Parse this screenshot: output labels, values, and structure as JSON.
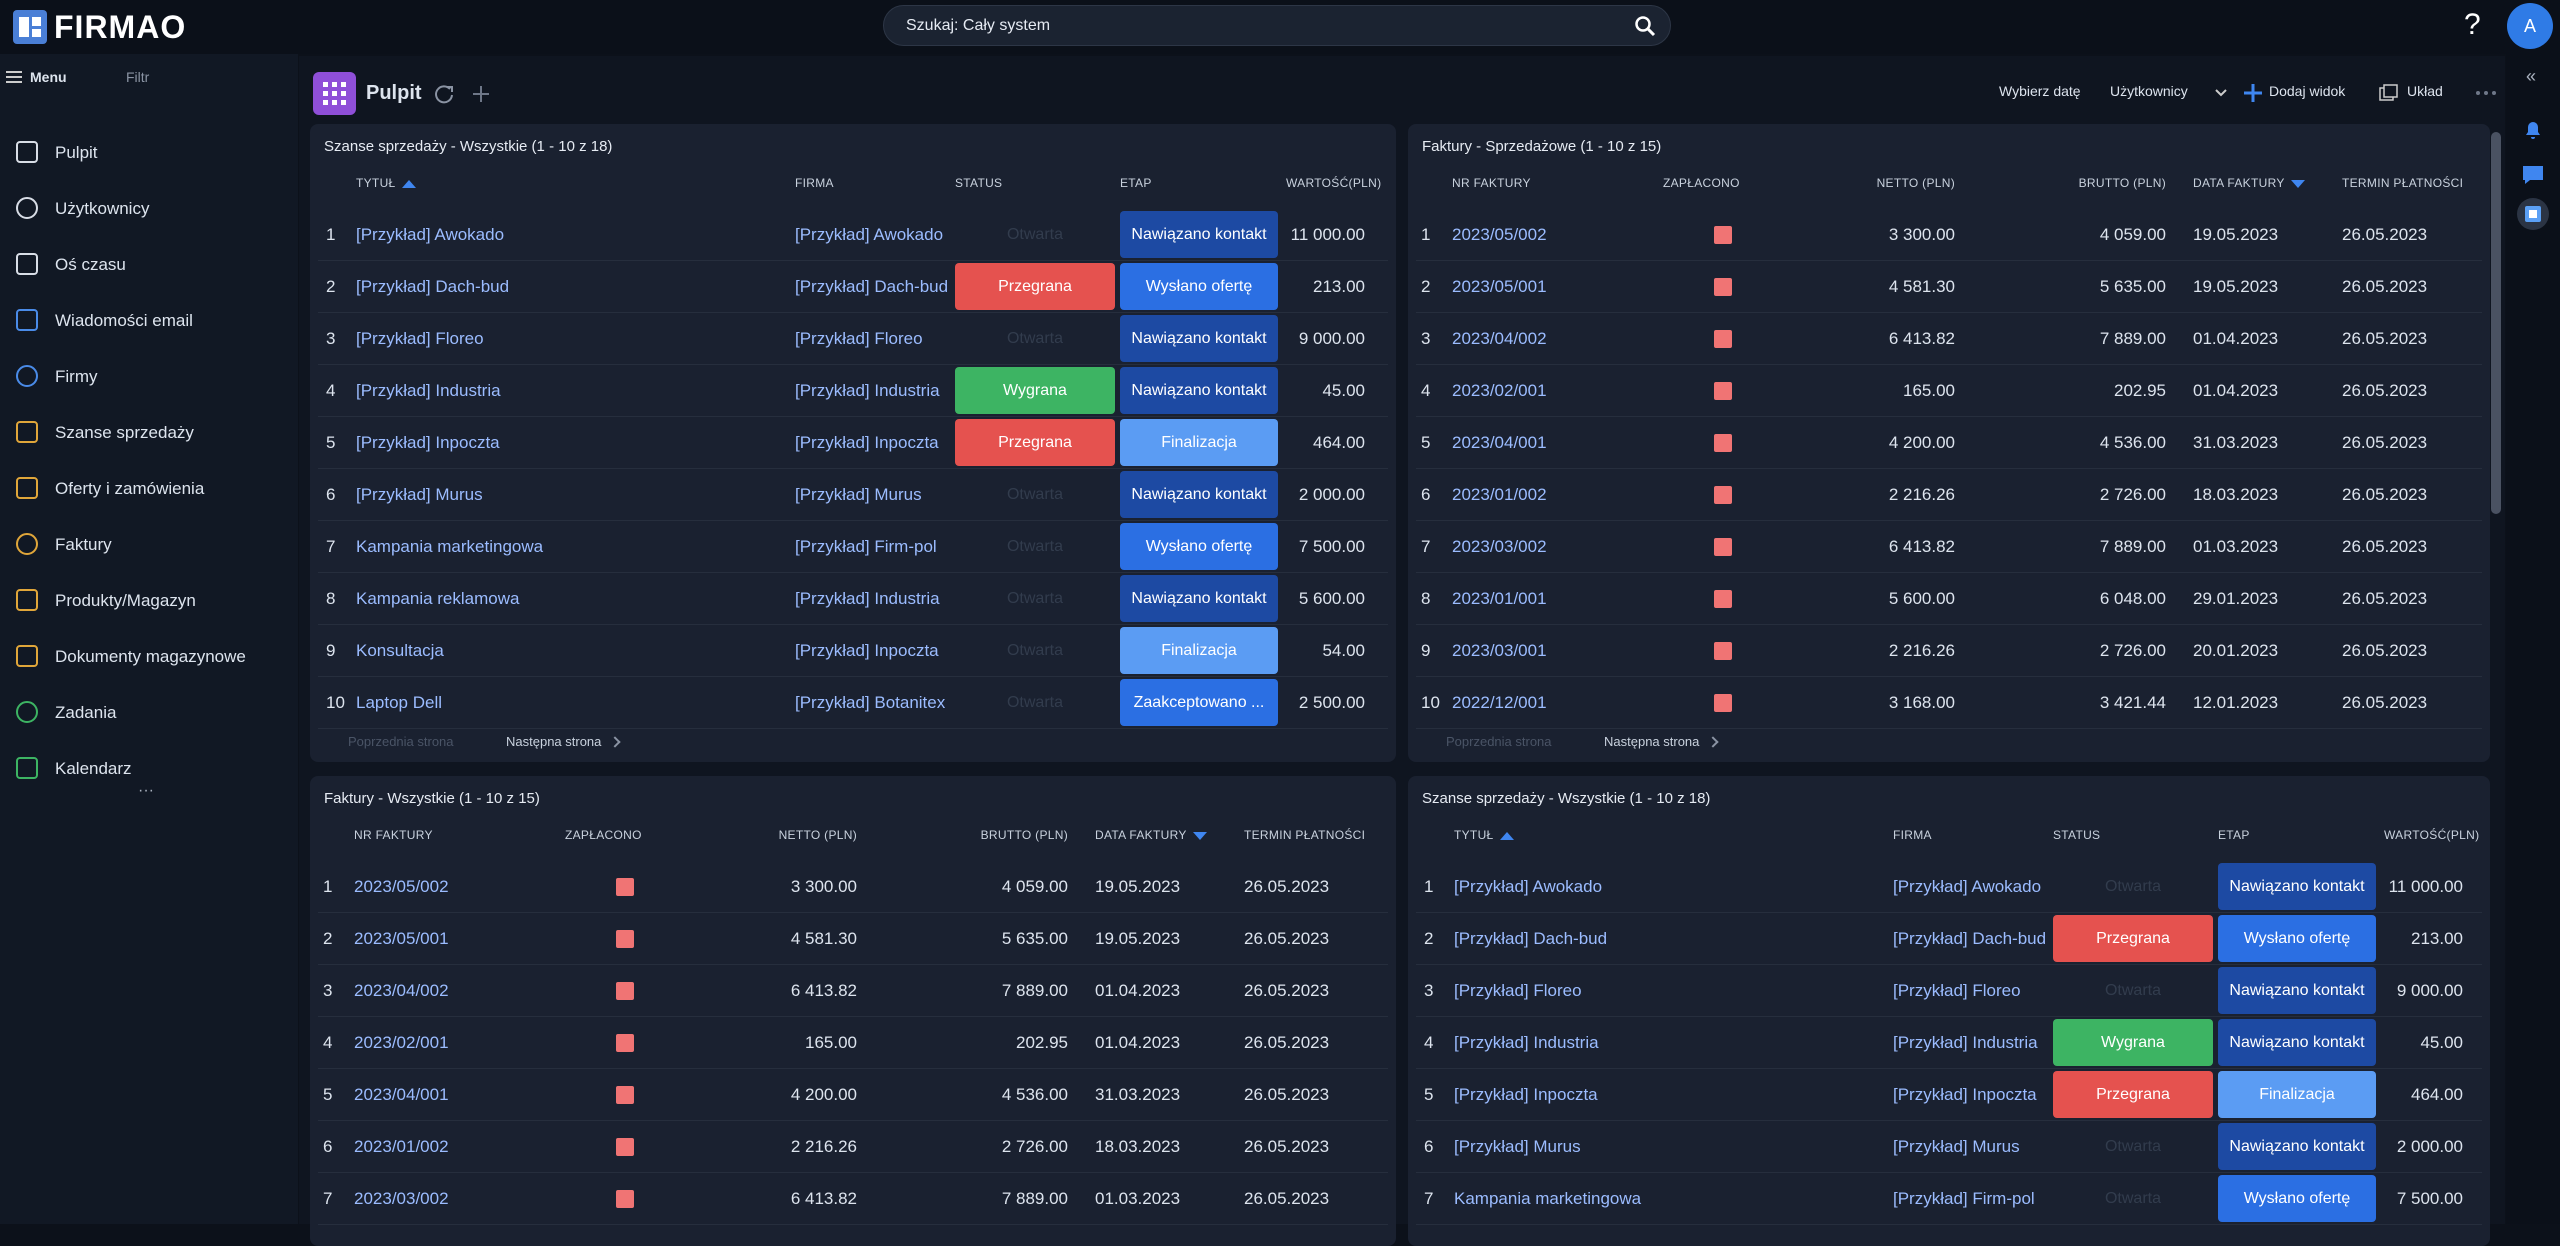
{
  "header": {
    "logo": "FIRMAO",
    "search": "Szukaj: Cały system",
    "help": "?",
    "avatar": "A"
  },
  "nav": {
    "menu": "Menu",
    "filter": "Filtr",
    "more": "···",
    "items": [
      "Pulpit",
      "Użytkownicy",
      "Oś czasu",
      "Wiadomości email",
      "Firmy",
      "Szanse sprzedaży",
      "Oferty i zamówienia",
      "Faktury",
      "Produkty/Magazyn",
      "Dokumenty magazynowe",
      "Zadania",
      "Kalendarz"
    ]
  },
  "toolbar": {
    "title": "Pulpit",
    "date": "Wybierz datę",
    "users": "Użytkownicy",
    "add_view": "Dodaj widok",
    "layout": "Układ"
  },
  "rail": {
    "collapse": "«"
  },
  "panels": [
    {
      "type": "deals",
      "title": "Szanse sprzedaży - Wszystkie (1 - 10 z 18)",
      "columns": [
        "TYTUŁ",
        "FIRMA",
        "STATUS",
        "ETAP",
        "WARTOŚĆ(PLN)"
      ],
      "sort": {
        "column": 0,
        "direction": "asc"
      },
      "colors": {
        "Przegrana": "#e5524f",
        "Wygrana": "#3db463",
        "Nawiązano kontakt": "#1d4aa3",
        "Wysłano ofertę": "#2b6fe3",
        "Finalizacja": "#5b9cf3",
        "Zaakceptowano ...": "#2b6fe3"
      },
      "rows": [
        [
          "1",
          "[Przykład] Awokado",
          "[Przykład] Awokado",
          "Otwarta",
          "Nawiązano kontakt",
          "11 000.00"
        ],
        [
          "2",
          "[Przykład] Dach-bud",
          "[Przykład] Dach-bud",
          "Przegrana",
          "Wysłano ofertę",
          "213.00"
        ],
        [
          "3",
          "[Przykład] Floreo",
          "[Przykład] Floreo",
          "Otwarta",
          "Nawiązano kontakt",
          "9 000.00"
        ],
        [
          "4",
          "[Przykład] Industria",
          "[Przykład] Industria",
          "Wygrana",
          "Nawiązano kontakt",
          "45.00"
        ],
        [
          "5",
          "[Przykład] Inpoczta",
          "[Przykład] Inpoczta",
          "Przegrana",
          "Finalizacja",
          "464.00"
        ],
        [
          "6",
          "[Przykład] Murus",
          "[Przykład] Murus",
          "Otwarta",
          "Nawiązano kontakt",
          "2 000.00"
        ],
        [
          "7",
          "Kampania marketingowa",
          "[Przykład] Firm-pol",
          "Otwarta",
          "Wysłano ofertę",
          "7 500.00"
        ],
        [
          "8",
          "Kampania reklamowa",
          "[Przykład] Industria",
          "Otwarta",
          "Nawiązano kontakt",
          "5 600.00"
        ],
        [
          "9",
          "Konsultacja",
          "[Przykład] Inpoczta",
          "Otwarta",
          "Finalizacja",
          "54.00"
        ],
        [
          "10",
          "Laptop Dell",
          "[Przykład] Botanitex",
          "Otwarta",
          "Zaakceptowano ...",
          "2 500.00"
        ]
      ],
      "pager": {
        "prev": "Poprzednia strona",
        "next": "Następna strona"
      }
    },
    {
      "type": "invoices",
      "title": "Faktury - Sprzedażowe (1 - 10 z 15)",
      "columns": [
        "NR FAKTURY",
        "ZAPŁACONO",
        "NETTO (PLN)",
        "BRUTTO (PLN)",
        "DATA FAKTURY",
        "TERMIN PŁATNOŚCI"
      ],
      "sort": {
        "column": 4,
        "direction": "desc"
      },
      "rows": [
        [
          "1",
          "2023/05/002",
          false,
          "3 300.00",
          "4 059.00",
          "19.05.2023",
          "26.05.2023"
        ],
        [
          "2",
          "2023/05/001",
          false,
          "4 581.30",
          "5 635.00",
          "19.05.2023",
          "26.05.2023"
        ],
        [
          "3",
          "2023/04/002",
          false,
          "6 413.82",
          "7 889.00",
          "01.04.2023",
          "26.05.2023"
        ],
        [
          "4",
          "2023/02/001",
          false,
          "165.00",
          "202.95",
          "01.04.2023",
          "26.05.2023"
        ],
        [
          "5",
          "2023/04/001",
          false,
          "4 200.00",
          "4 536.00",
          "31.03.2023",
          "26.05.2023"
        ],
        [
          "6",
          "2023/01/002",
          false,
          "2 216.26",
          "2 726.00",
          "18.03.2023",
          "26.05.2023"
        ],
        [
          "7",
          "2023/03/002",
          false,
          "6 413.82",
          "7 889.00",
          "01.03.2023",
          "26.05.2023"
        ],
        [
          "8",
          "2023/01/001",
          false,
          "5 600.00",
          "6 048.00",
          "29.01.2023",
          "26.05.2023"
        ],
        [
          "9",
          "2023/03/001",
          false,
          "2 216.26",
          "2 726.00",
          "20.01.2023",
          "26.05.2023"
        ],
        [
          "10",
          "2022/12/001",
          false,
          "3 168.00",
          "3 421.44",
          "12.01.2023",
          "26.05.2023"
        ]
      ],
      "pager": {
        "prev": "Poprzednia strona",
        "next": "Następna strona"
      }
    },
    {
      "type": "invoices",
      "title": "Faktury - Wszystkie (1 - 10 z 15)",
      "columns": [
        "NR FAKTURY",
        "ZAPŁACONO",
        "NETTO (PLN)",
        "BRUTTO (PLN)",
        "DATA FAKTURY",
        "TERMIN PŁATNOŚCI"
      ],
      "sort": {
        "column": 4,
        "direction": "desc"
      },
      "rows": [
        [
          "1",
          "2023/05/002",
          false,
          "3 300.00",
          "4 059.00",
          "19.05.2023",
          "26.05.2023"
        ],
        [
          "2",
          "2023/05/001",
          false,
          "4 581.30",
          "5 635.00",
          "19.05.2023",
          "26.05.2023"
        ],
        [
          "3",
          "2023/04/002",
          false,
          "6 413.82",
          "7 889.00",
          "01.04.2023",
          "26.05.2023"
        ],
        [
          "4",
          "2023/02/001",
          false,
          "165.00",
          "202.95",
          "01.04.2023",
          "26.05.2023"
        ],
        [
          "5",
          "2023/04/001",
          false,
          "4 200.00",
          "4 536.00",
          "31.03.2023",
          "26.05.2023"
        ],
        [
          "6",
          "2023/01/002",
          false,
          "2 216.26",
          "2 726.00",
          "18.03.2023",
          "26.05.2023"
        ],
        [
          "7",
          "2023/03/002",
          false,
          "6 413.82",
          "7 889.00",
          "01.03.2023",
          "26.05.2023"
        ]
      ]
    },
    {
      "type": "deals",
      "title": "Szanse sprzedaży - Wszystkie (1 - 10 z 18)",
      "columns": [
        "TYTUŁ",
        "FIRMA",
        "STATUS",
        "ETAP",
        "WARTOŚĆ(PLN)"
      ],
      "sort": {
        "column": 0,
        "direction": "asc"
      },
      "colors": {
        "Przegrana": "#e5524f",
        "Wygrana": "#3db463",
        "Nawiązano kontakt": "#1d4aa3",
        "Wysłano ofertę": "#2b6fe3",
        "Finalizacja": "#5b9cf3"
      },
      "rows": [
        [
          "1",
          "[Przykład] Awokado",
          "[Przykład] Awokado",
          "Otwarta",
          "Nawiązano kontakt",
          "11 000.00"
        ],
        [
          "2",
          "[Przykład] Dach-bud",
          "[Przykład] Dach-bud",
          "Przegrana",
          "Wysłano ofertę",
          "213.00"
        ],
        [
          "3",
          "[Przykład] Floreo",
          "[Przykład] Floreo",
          "Otwarta",
          "Nawiązano kontakt",
          "9 000.00"
        ],
        [
          "4",
          "[Przykład] Industria",
          "[Przykład] Industria",
          "Wygrana",
          "Nawiązano kontakt",
          "45.00"
        ],
        [
          "5",
          "[Przykład] Inpoczta",
          "[Przykład] Inpoczta",
          "Przegrana",
          "Finalizacja",
          "464.00"
        ],
        [
          "6",
          "[Przykład] Murus",
          "[Przykład] Murus",
          "Otwarta",
          "Nawiązano kontakt",
          "2 000.00"
        ],
        [
          "7",
          "Kampania marketingowa",
          "[Przykład] Firm-pol",
          "Otwarta",
          "Wysłano ofertę",
          "7 500.00"
        ]
      ]
    }
  ]
}
